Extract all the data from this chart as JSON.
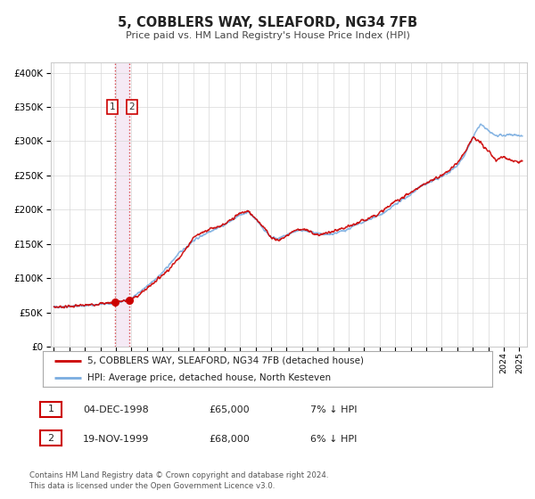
{
  "title": "5, COBBLERS WAY, SLEAFORD, NG34 7FB",
  "subtitle": "Price paid vs. HM Land Registry's House Price Index (HPI)",
  "legend_line1": "5, COBBLERS WAY, SLEAFORD, NG34 7FB (detached house)",
  "legend_line2": "HPI: Average price, detached house, North Kesteven",
  "table_rows": [
    {
      "num": 1,
      "date": "04-DEC-1998",
      "price": "£65,000",
      "hpi": "7% ↓ HPI"
    },
    {
      "num": 2,
      "date": "19-NOV-1999",
      "price": "£68,000",
      "hpi": "6% ↓ HPI"
    }
  ],
  "footnote1": "Contains HM Land Registry data © Crown copyright and database right 2024.",
  "footnote2": "This data is licensed under the Open Government Licence v3.0.",
  "red_color": "#cc0000",
  "blue_color": "#7aade0",
  "span_color": "#f5eaf5",
  "sale1_year": 1998.92,
  "sale2_year": 1999.88,
  "sale1_price": 65000,
  "sale2_price": 68000,
  "yticks": [
    0,
    50000,
    100000,
    150000,
    200000,
    250000,
    300000,
    350000,
    400000
  ],
  "ylim": [
    0,
    415000
  ],
  "xlim_start": 1994.8,
  "xlim_end": 2025.5,
  "hpi_waypoints_x": [
    1995.0,
    1996.0,
    1997.0,
    1998.0,
    1999.0,
    2000.0,
    2001.0,
    2002.0,
    2003.0,
    2004.0,
    2005.0,
    2006.0,
    2007.0,
    2007.5,
    2008.0,
    2008.5,
    2009.0,
    2009.5,
    2010.0,
    2010.5,
    2011.0,
    2011.5,
    2012.0,
    2012.5,
    2013.0,
    2013.5,
    2014.0,
    2014.5,
    2015.0,
    2015.5,
    2016.0,
    2016.5,
    2017.0,
    2017.5,
    2018.0,
    2018.5,
    2019.0,
    2019.5,
    2020.0,
    2020.5,
    2021.0,
    2021.5,
    2022.0,
    2022.5,
    2023.0,
    2023.5,
    2024.0,
    2024.5,
    2025.0
  ],
  "hpi_waypoints_y": [
    58000,
    59000,
    60000,
    62000,
    63500,
    71000,
    88000,
    108000,
    135000,
    155000,
    168000,
    178000,
    192000,
    197000,
    187000,
    172000,
    160000,
    158000,
    163000,
    168000,
    170000,
    168000,
    165000,
    163000,
    165000,
    168000,
    172000,
    178000,
    182000,
    188000,
    192000,
    198000,
    208000,
    215000,
    222000,
    232000,
    238000,
    243000,
    248000,
    255000,
    265000,
    280000,
    305000,
    325000,
    315000,
    308000,
    308000,
    310000,
    308000
  ],
  "red_waypoints_x": [
    1995.0,
    1996.0,
    1997.0,
    1998.0,
    1998.92,
    1999.88,
    2000.5,
    2001.5,
    2002.5,
    2003.5,
    2004.0,
    2005.0,
    2006.0,
    2007.0,
    2007.5,
    2008.0,
    2008.5,
    2009.0,
    2009.5,
    2010.0,
    2010.5,
    2011.0,
    2011.5,
    2012.0,
    2013.0,
    2014.0,
    2015.0,
    2016.0,
    2017.0,
    2018.0,
    2018.5,
    2019.0,
    2019.5,
    2020.0,
    2020.5,
    2021.0,
    2021.5,
    2022.0,
    2022.5,
    2023.0,
    2023.5,
    2024.0,
    2024.5,
    2025.0
  ],
  "red_waypoints_y": [
    58000,
    59000,
    60500,
    63000,
    65000,
    68000,
    76000,
    95000,
    115000,
    142000,
    160000,
    172000,
    178000,
    195000,
    198000,
    188000,
    175000,
    160000,
    155000,
    162000,
    170000,
    172000,
    168000,
    163000,
    168000,
    175000,
    185000,
    195000,
    212000,
    225000,
    232000,
    238000,
    245000,
    250000,
    258000,
    268000,
    285000,
    305000,
    298000,
    285000,
    272000,
    278000,
    272000,
    270000
  ]
}
